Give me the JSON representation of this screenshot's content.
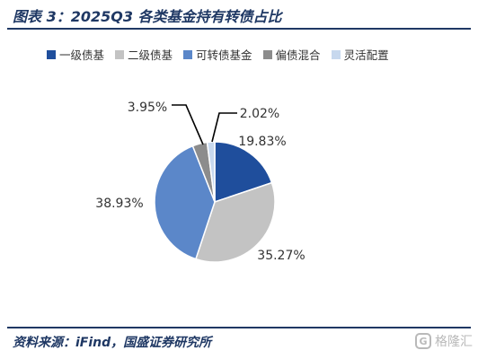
{
  "title": "图表 3：2025Q3 各类基金持有转债占比",
  "source": "资料来源：iFind，国盛证券研究所",
  "watermark": {
    "text": "格隆汇",
    "logo_letter": "G"
  },
  "chart_data": {
    "type": "pie",
    "title": "图表 3：2025Q3 各类基金持有转债占比",
    "legend_position": "top",
    "categories": [
      "一级债基",
      "二级债基",
      "可转债基金",
      "偏债混合",
      "灵活配置"
    ],
    "values": [
      19.83,
      35.27,
      38.93,
      3.95,
      2.02
    ],
    "data_labels": [
      "19.83%",
      "35.27%",
      "38.93%",
      "3.95%",
      "2.02%"
    ],
    "colors": [
      "#1f4e9c",
      "#c3c3c3",
      "#5b87c9",
      "#8c8c8c",
      "#c7d8ee"
    ],
    "start_angle_deg": 0,
    "direction": "clockwise"
  }
}
